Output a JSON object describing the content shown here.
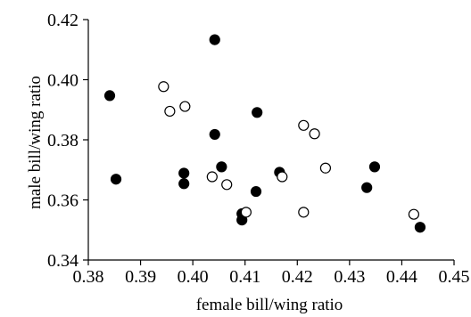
{
  "chart_data": {
    "type": "scatter",
    "title": "",
    "xlabel": "female bill/wing ratio",
    "ylabel": "male bill/wing ratio",
    "xlim": [
      0.38,
      0.45
    ],
    "ylim": [
      0.34,
      0.42
    ],
    "x_ticks": [
      "0.38",
      "0.39",
      "0.40",
      "0.41",
      "0.42",
      "0.43",
      "0.44",
      "0.45"
    ],
    "y_ticks": [
      "0.34",
      "0.36",
      "0.38",
      "0.40",
      "0.42"
    ],
    "grid": false,
    "legend": false,
    "series": [
      {
        "marker": "filled-circle",
        "color": "#000000",
        "points": [
          {
            "x": 0.3841,
            "y": 0.3947
          },
          {
            "x": 0.3853,
            "y": 0.3669
          },
          {
            "x": 0.3983,
            "y": 0.3689
          },
          {
            "x": 0.3983,
            "y": 0.3654
          },
          {
            "x": 0.4042,
            "y": 0.4133
          },
          {
            "x": 0.4042,
            "y": 0.3818
          },
          {
            "x": 0.4055,
            "y": 0.371
          },
          {
            "x": 0.4094,
            "y": 0.3533
          },
          {
            "x": 0.4094,
            "y": 0.3554
          },
          {
            "x": 0.4121,
            "y": 0.3628
          },
          {
            "x": 0.4123,
            "y": 0.3891
          },
          {
            "x": 0.4166,
            "y": 0.3692
          },
          {
            "x": 0.4333,
            "y": 0.3641
          },
          {
            "x": 0.4348,
            "y": 0.371
          },
          {
            "x": 0.4435,
            "y": 0.3509
          }
        ]
      },
      {
        "marker": "open-circle",
        "color": "#000000",
        "points": [
          {
            "x": 0.3944,
            "y": 0.3977
          },
          {
            "x": 0.3956,
            "y": 0.3895
          },
          {
            "x": 0.3985,
            "y": 0.3911
          },
          {
            "x": 0.4037,
            "y": 0.3677
          },
          {
            "x": 0.4065,
            "y": 0.3651
          },
          {
            "x": 0.4102,
            "y": 0.3559
          },
          {
            "x": 0.4171,
            "y": 0.3677
          },
          {
            "x": 0.4212,
            "y": 0.3848
          },
          {
            "x": 0.4212,
            "y": 0.3559
          },
          {
            "x": 0.4233,
            "y": 0.382
          },
          {
            "x": 0.4254,
            "y": 0.3706
          },
          {
            "x": 0.4423,
            "y": 0.3552
          }
        ]
      }
    ]
  }
}
